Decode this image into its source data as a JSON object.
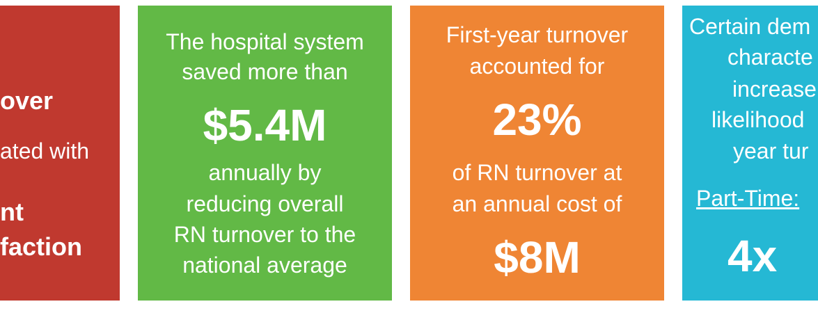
{
  "cards": [
    {
      "lines": [
        "over",
        "ated with",
        "nt",
        "faction"
      ]
    },
    {
      "lines": [
        "The hospital system",
        "saved more than",
        "$5.4M",
        "annually by",
        "reducing overall",
        "RN turnover to the",
        "national average"
      ]
    },
    {
      "lines": [
        "First-year turnover",
        "accounted for",
        "23%",
        "of RN turnover at",
        "an annual cost of",
        "$8M"
      ]
    },
    {
      "lines": [
        "Certain dem",
        "characte",
        "increase",
        "likelihood",
        "year tur",
        "Part-Time:",
        "4x"
      ]
    }
  ]
}
